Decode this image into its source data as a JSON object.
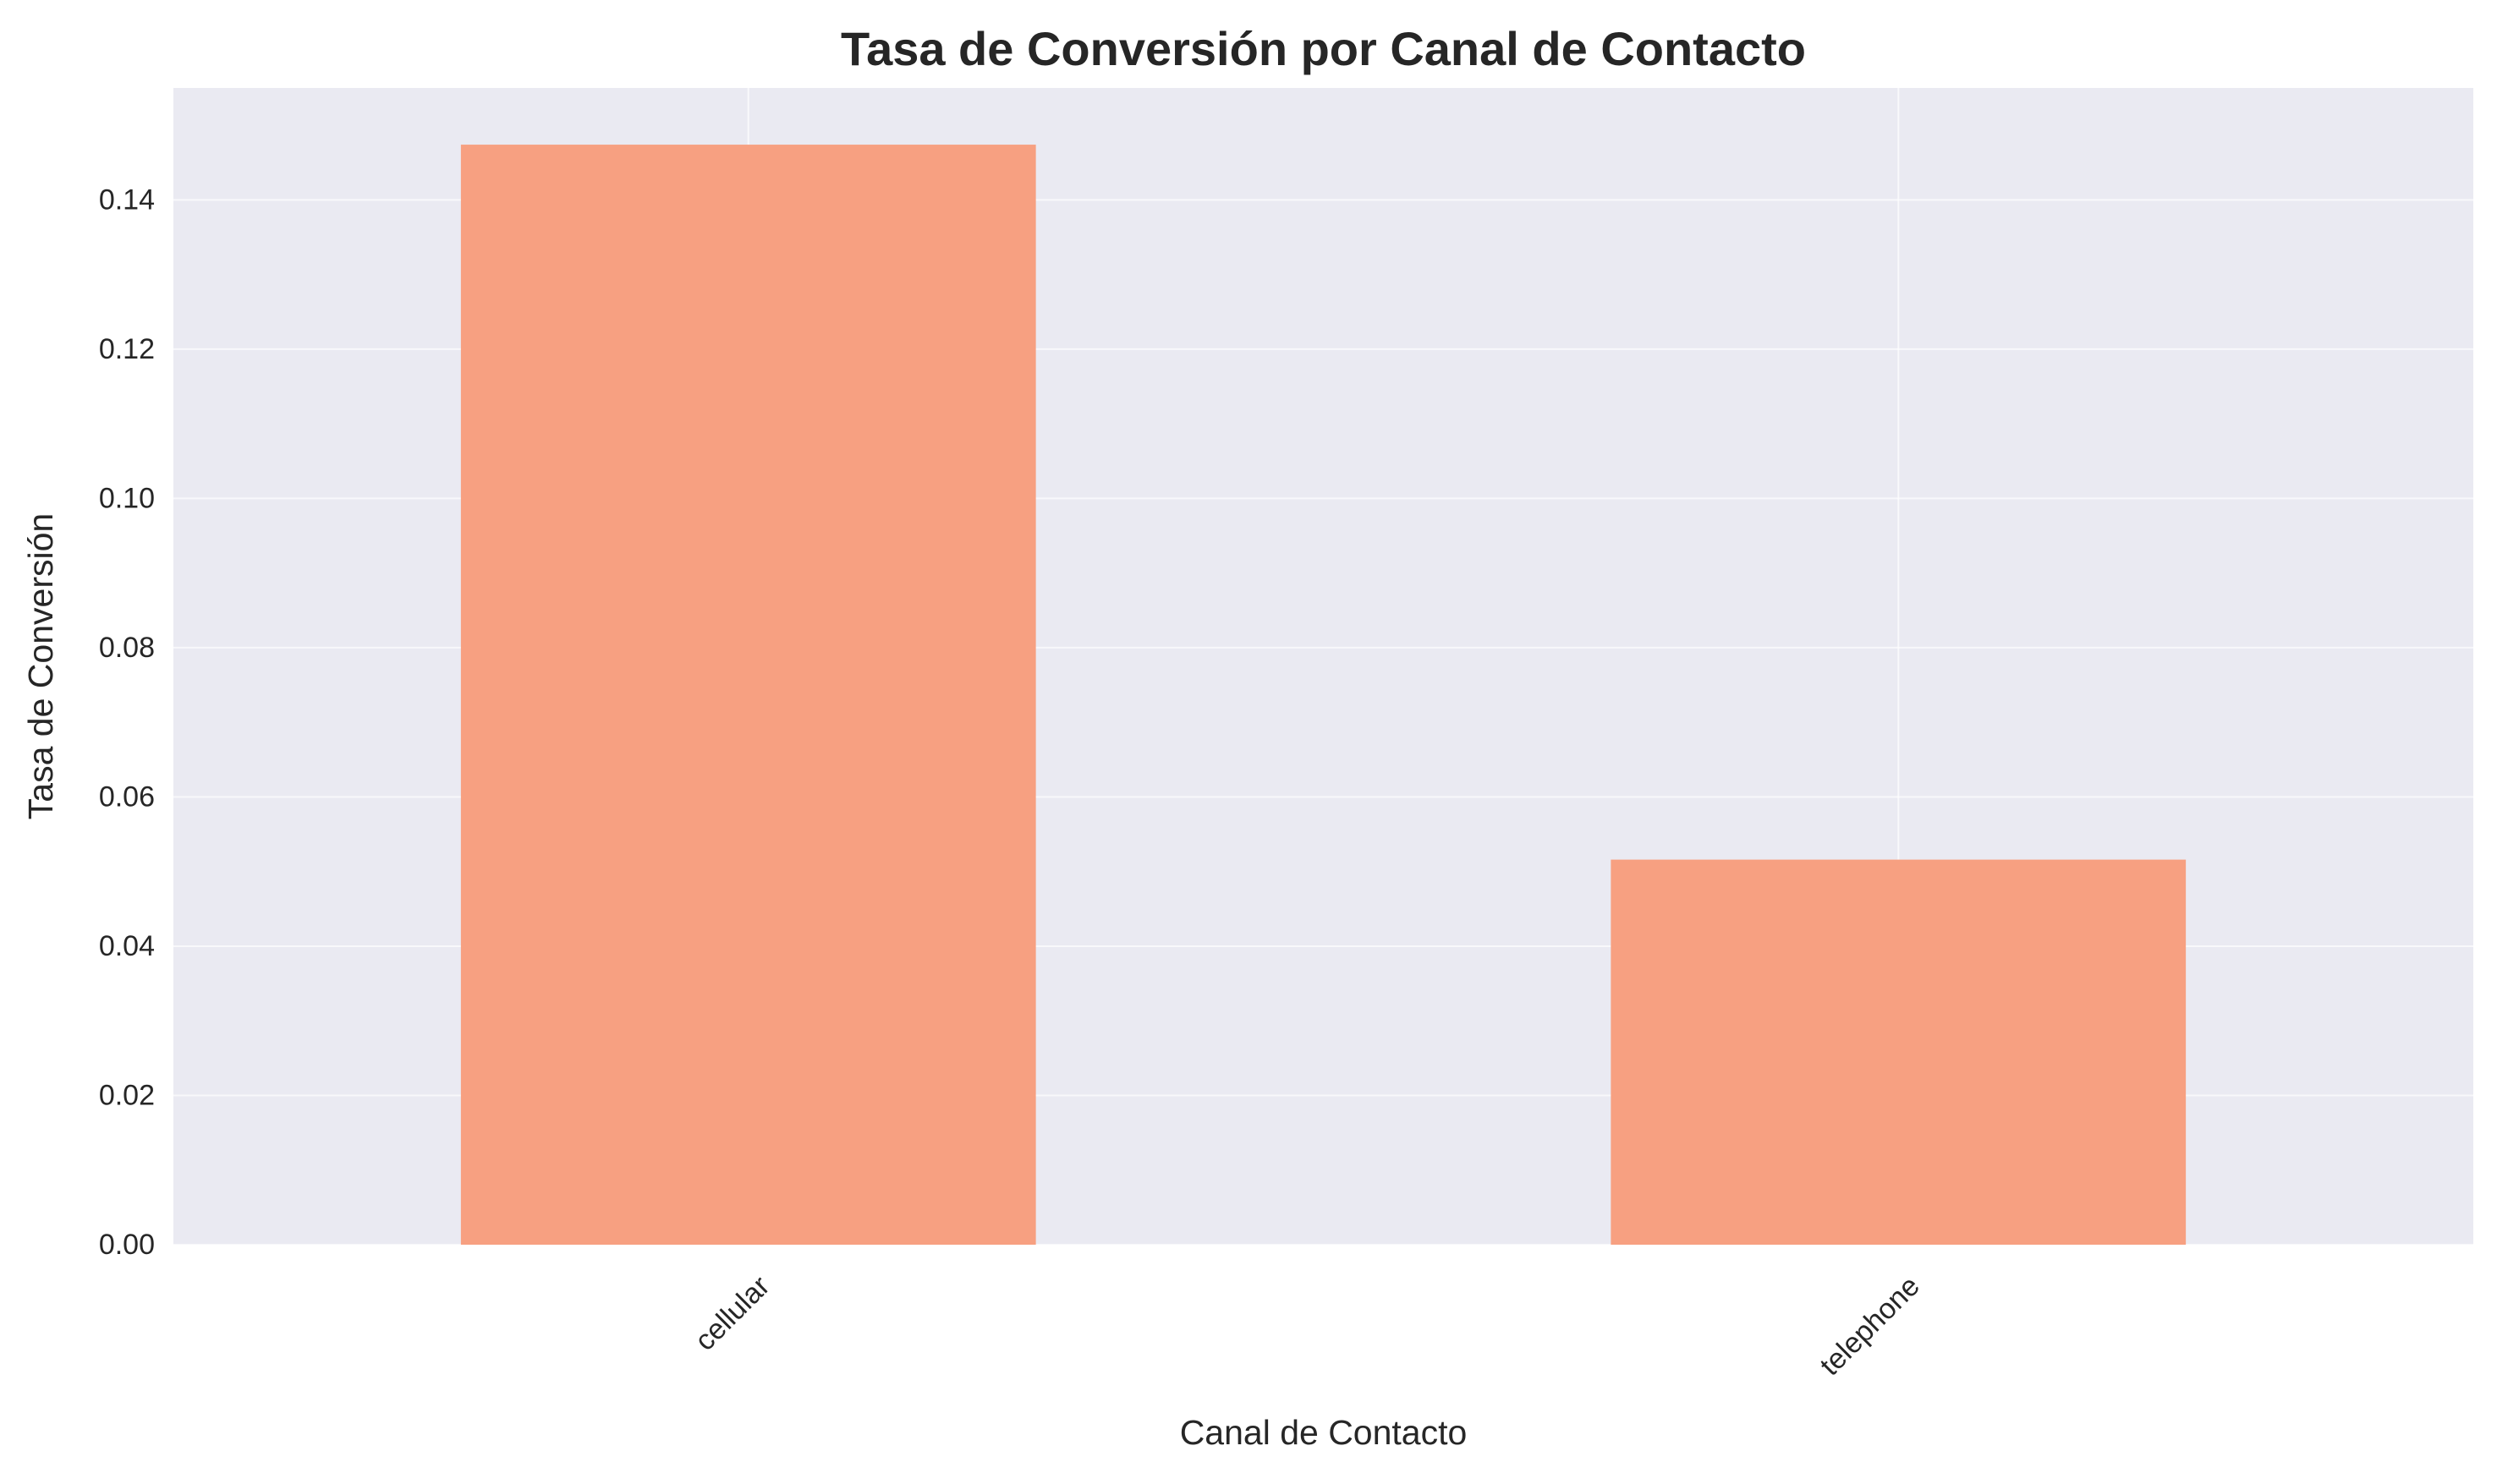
{
  "chart_data": {
    "type": "bar",
    "title": "Tasa de Conversión por Canal de Contacto",
    "xlabel": "Canal de Contacto",
    "ylabel": "Tasa de Conversión",
    "categories": [
      "cellular",
      "telephone"
    ],
    "values": [
      0.1474,
      0.0516
    ],
    "ylim": [
      0,
      0.155
    ],
    "yticks": [
      "0.00",
      "0.02",
      "0.04",
      "0.06",
      "0.08",
      "0.10",
      "0.12",
      "0.14"
    ],
    "grid": true,
    "legend": "none",
    "colors": {
      "bar": "#f7a081",
      "plot_background": "#eaeaf2",
      "grid": "#ffffff",
      "text": "#262626"
    }
  }
}
